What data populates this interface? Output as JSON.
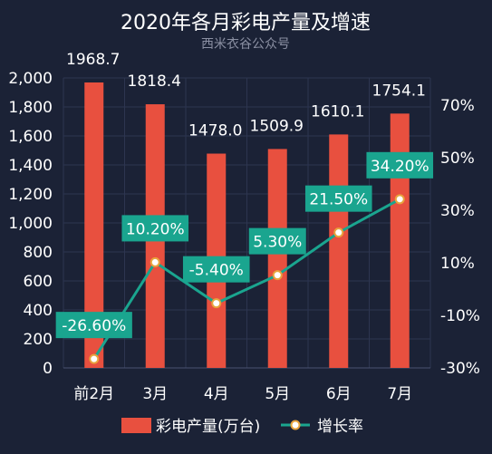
{
  "chart_data": {
    "type": "bar",
    "title": "2020年各月彩电产量及增速",
    "subtitle": "西米衣谷公众号",
    "categories": [
      "前2月",
      "3月",
      "4月",
      "5月",
      "6月",
      "7月"
    ],
    "series": [
      {
        "name": "彩电产量(万台)",
        "type": "bar",
        "axis": "left",
        "values": [
          1968.7,
          1818.4,
          1478.0,
          1509.9,
          1610.1,
          1754.1
        ],
        "labels": [
          "1968.7",
          "1818.4",
          "1478.0",
          "1509.9",
          "1610.1",
          "1754.1"
        ],
        "color": "#e8503f"
      },
      {
        "name": "增长率",
        "type": "line",
        "axis": "right",
        "values": [
          -26.6,
          10.2,
          -5.4,
          5.3,
          21.5,
          34.2
        ],
        "labels": [
          "-26.60%",
          "10.20%",
          "-5.40%",
          "5.30%",
          "21.50%",
          "34.20%"
        ],
        "color": "#1aa58f"
      }
    ],
    "y_left": {
      "range": [
        0,
        2000
      ],
      "ticks": [
        0,
        200,
        400,
        600,
        800,
        1000,
        1200,
        1400,
        1600,
        1800,
        2000
      ],
      "tick_labels": [
        "0",
        "200",
        "400",
        "600",
        "800",
        "1,000",
        "1,200",
        "1,400",
        "1,600",
        "1,800",
        "2,000"
      ]
    },
    "y_right": {
      "range": [
        -30,
        80
      ],
      "ticks": [
        -30,
        -10,
        10,
        30,
        50,
        70
      ],
      "tick_labels": [
        "-30%",
        "-10%",
        "10%",
        "30%",
        "50%",
        "70%"
      ]
    },
    "grid": true,
    "legend_position": "bottom"
  }
}
